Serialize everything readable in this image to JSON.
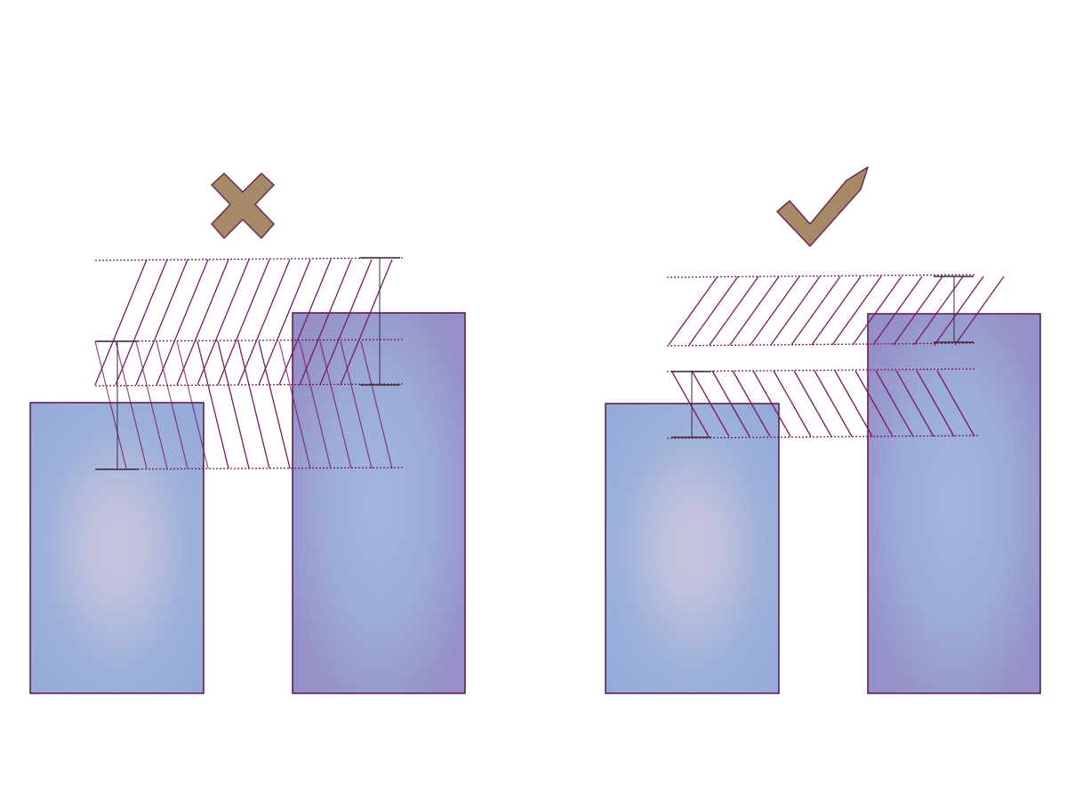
{
  "colors": {
    "background": "#ffffff",
    "outline": "#5a1248",
    "hatch": "#7a1a60",
    "dimension": "#3a2a3a",
    "mark_fill": "#a68a68",
    "mark_stroke": "#6a2a55",
    "block_light": "#c2c2dc",
    "block_mid": "#9aaed8",
    "block_dark": "#9790c8"
  },
  "panels": [
    {
      "name": "incorrect",
      "mark_icon": "cross-icon",
      "verdict": "incorrect"
    },
    {
      "name": "correct",
      "mark_icon": "check-icon",
      "verdict": "correct"
    }
  ]
}
